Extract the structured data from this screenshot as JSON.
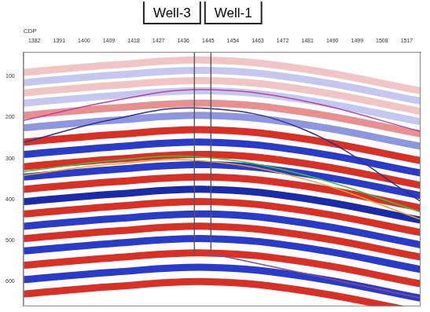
{
  "chart_data": {
    "type": "line",
    "xlabel": "CDP",
    "xlim": [
      1378,
      1522
    ],
    "xticks": [
      1382,
      1391,
      1400,
      1409,
      1418,
      1427,
      1436,
      1445,
      1454,
      1463,
      1472,
      1481,
      1490,
      1499,
      1508,
      1517
    ],
    "ylim": [
      40,
      660
    ],
    "yticks": [
      100,
      200,
      300,
      400,
      500,
      600
    ],
    "grid": false,
    "wells": [
      {
        "name": "Well-3",
        "x": [
          1440,
          1440
        ],
        "values": [
          40,
          535
        ],
        "color": "#555555"
      },
      {
        "name": "Well-1",
        "x": [
          1446,
          1446
        ],
        "values": [
          40,
          525
        ],
        "color": "#555555"
      }
    ],
    "horizons": [
      {
        "color": "#c040a0",
        "x": [
          1378,
          1410,
          1442,
          1480,
          1522
        ],
        "values": [
          207,
          160,
          132,
          160,
          234
        ]
      },
      {
        "color": "#303090",
        "x": [
          1378,
          1410,
          1442,
          1480,
          1522
        ],
        "values": [
          261,
          205,
          177,
          230,
          404
        ]
      },
      {
        "color": "#40c040",
        "x": [
          1378,
          1410,
          1442,
          1480,
          1522
        ],
        "values": [
          332,
          305,
          296,
          340,
          430
        ]
      },
      {
        "color": "#e8a030",
        "x": [
          1378,
          1410,
          1442,
          1480,
          1522
        ],
        "values": [
          341,
          314,
          305,
          350,
          448
        ]
      },
      {
        "color": "#8a4a8a",
        "x": [
          1445,
          1480,
          1522
        ],
        "values": [
          530,
          580,
          640
        ]
      }
    ],
    "reflectors": [
      {
        "color": "#f2c4c4",
        "x": [
          1378,
          1410,
          1445,
          1480,
          1522
        ],
        "values": [
          90,
          72,
          60,
          82,
          135
        ]
      },
      {
        "color": "#c4c8f0",
        "x": [
          1378,
          1410,
          1445,
          1480,
          1522
        ],
        "values": [
          115,
          97,
          85,
          107,
          160
        ]
      },
      {
        "color": "#f2c4c4",
        "x": [
          1378,
          1410,
          1445,
          1480,
          1522
        ],
        "values": [
          140,
          122,
          110,
          132,
          185
        ]
      },
      {
        "color": "#c4c8f0",
        "x": [
          1378,
          1410,
          1445,
          1480,
          1522
        ],
        "values": [
          165,
          147,
          135,
          157,
          210
        ]
      },
      {
        "color": "#e89090",
        "x": [
          1378,
          1410,
          1445,
          1480,
          1522
        ],
        "values": [
          195,
          177,
          165,
          187,
          240
        ]
      },
      {
        "color": "#8f96e0",
        "x": [
          1378,
          1410,
          1445,
          1480,
          1522
        ],
        "values": [
          225,
          207,
          195,
          217,
          270
        ]
      },
      {
        "color": "#d93025",
        "x": [
          1378,
          1410,
          1445,
          1480,
          1522
        ],
        "values": [
          260,
          242,
          230,
          252,
          305
        ]
      },
      {
        "color": "#2a3bc9",
        "x": [
          1378,
          1410,
          1445,
          1480,
          1522
        ],
        "values": [
          290,
          272,
          260,
          282,
          335
        ]
      },
      {
        "color": "#d93025",
        "x": [
          1378,
          1410,
          1445,
          1480,
          1522
        ],
        "values": [
          320,
          302,
          290,
          312,
          365
        ]
      },
      {
        "color": "#2a3bc9",
        "x": [
          1378,
          1410,
          1445,
          1480,
          1522
        ],
        "values": [
          345,
          327,
          315,
          337,
          390
        ]
      },
      {
        "color": "#d93025",
        "x": [
          1378,
          1410,
          1445,
          1480,
          1522
        ],
        "values": [
          375,
          357,
          345,
          367,
          420
        ]
      },
      {
        "color": "#1a2aa8",
        "x": [
          1378,
          1410,
          1445,
          1480,
          1522
        ],
        "values": [
          405,
          387,
          375,
          397,
          450
        ]
      },
      {
        "color": "#d93025",
        "x": [
          1378,
          1410,
          1445,
          1480,
          1522
        ],
        "values": [
          435,
          417,
          405,
          427,
          480
        ]
      },
      {
        "color": "#2a3bc9",
        "x": [
          1378,
          1410,
          1445,
          1480,
          1522
        ],
        "values": [
          465,
          447,
          435,
          457,
          510
        ]
      },
      {
        "color": "#d93025",
        "x": [
          1378,
          1410,
          1445,
          1480,
          1522
        ],
        "values": [
          495,
          477,
          465,
          487,
          540
        ]
      },
      {
        "color": "#2a3bc9",
        "x": [
          1378,
          1410,
          1445,
          1480,
          1522
        ],
        "values": [
          525,
          507,
          495,
          517,
          570
        ]
      },
      {
        "color": "#d93025",
        "x": [
          1378,
          1410,
          1445,
          1480,
          1522
        ],
        "values": [
          560,
          542,
          530,
          552,
          605
        ]
      },
      {
        "color": "#2a3bc9",
        "x": [
          1378,
          1410,
          1445,
          1480,
          1522
        ],
        "values": [
          595,
          577,
          565,
          587,
          640
        ]
      },
      {
        "color": "#d93025",
        "x": [
          1378,
          1410,
          1445,
          1480,
          1522
        ],
        "values": [
          630,
          612,
          600,
          622,
          675
        ]
      }
    ]
  }
}
